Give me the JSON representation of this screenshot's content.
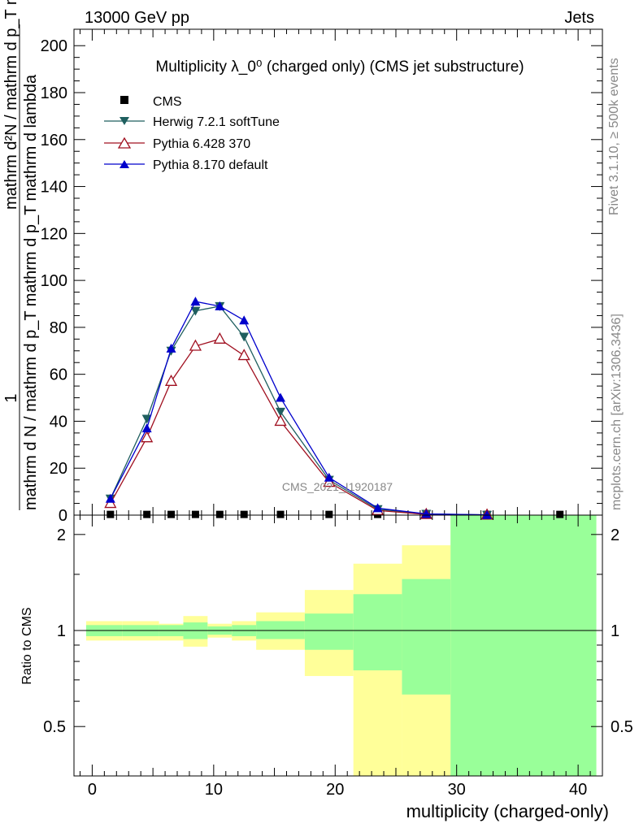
{
  "header": {
    "left": "13000 GeV pp",
    "right": "Jets"
  },
  "side": {
    "rivet": "Rivet 3.1.10, ≥ 500k events",
    "mcplots": "mcplots.cern.ch [arXiv:1306.3436]"
  },
  "watermark": "CMS_2021_I1920187",
  "main_title": "Multiplicity λ_0⁰ (charged only) (CMS jet substructure)",
  "ylabel_top": "1",
  "ylabel_top2": "mathrm d N / mathrm d p_T mathrm d p_T mathrm d lambda",
  "ylabel_main": "mathrm d²N / mathrm d p_T mathrm d lambda",
  "ratio_ylabel": "Ratio to CMS",
  "xlabel": "multiplicity (charged-only)",
  "colors": {
    "cms": "#000000",
    "herwig": "#1f5f5f",
    "pythia6": "#a01020",
    "pythia8": "#0000cc",
    "band_inner": "#99ff99",
    "band_outer": "#ffff99"
  },
  "chart_data": {
    "type": "line",
    "title": "Multiplicity λ_0⁰ (charged only) (CMS jet substructure)",
    "xlabel": "multiplicity (charged-only)",
    "xlim": [
      -1.5,
      42
    ],
    "ylim": [
      0,
      207
    ],
    "ratio_ylim": [
      0.35,
      2.3
    ],
    "x_ticks": [
      "0",
      "10",
      "20",
      "30",
      "40"
    ],
    "y_ticks": [
      "0",
      "20",
      "40",
      "60",
      "80",
      "100",
      "120",
      "140",
      "160",
      "180",
      "200"
    ],
    "ratio_ticks": [
      "0.5",
      "1",
      "2"
    ],
    "legend": [
      "CMS",
      "Herwig 7.2.1 softTune",
      "Pythia 6.428 370",
      "Pythia 8.170 default"
    ],
    "legend_position": "top-left",
    "series": [
      {
        "name": "CMS",
        "marker": "square",
        "x": [
          1.5,
          4.5,
          6.5,
          8.5,
          10.5,
          12.5,
          15.5,
          19.5,
          23.5,
          27.5,
          32.5,
          38.5
        ],
        "y": [
          0.3,
          0.3,
          0.3,
          0.3,
          0.3,
          0.3,
          0.3,
          0.3,
          0.3,
          0.3,
          0.3,
          0.3
        ]
      },
      {
        "name": "Herwig 7.2.1 softTune",
        "marker": "triangle-down",
        "x": [
          1.5,
          4.5,
          6.5,
          8.5,
          10.5,
          12.5,
          15.5,
          19.5,
          23.5,
          27.5,
          32.5
        ],
        "y": [
          7,
          41,
          70,
          87,
          89,
          76,
          44,
          15,
          2.5,
          0.5,
          0.1
        ]
      },
      {
        "name": "Pythia 6.428 370",
        "marker": "triangle-up-open",
        "x": [
          1.5,
          4.5,
          6.5,
          8.5,
          10.5,
          12.5,
          15.5,
          19.5,
          23.5,
          27.5,
          32.5
        ],
        "y": [
          5,
          33,
          57,
          72,
          75,
          68,
          40,
          14,
          2,
          0.3,
          0.05
        ]
      },
      {
        "name": "Pythia 8.170 default",
        "marker": "triangle-up",
        "x": [
          1.5,
          4.5,
          6.5,
          8.5,
          10.5,
          12.5,
          15.5,
          19.5,
          23.5,
          27.5,
          32.5
        ],
        "y": [
          7,
          37,
          71,
          91,
          89,
          83,
          50,
          16,
          3,
          0.5,
          0.1
        ]
      }
    ],
    "ratio_bands": [
      {
        "x0": -0.5,
        "x1": 2.5,
        "inner": [
          0.96,
          1.04
        ],
        "outer": [
          0.93,
          1.07
        ]
      },
      {
        "x0": 2.5,
        "x1": 5.5,
        "inner": [
          0.96,
          1.04
        ],
        "outer": [
          0.93,
          1.07
        ]
      },
      {
        "x0": 5.5,
        "x1": 7.5,
        "inner": [
          0.96,
          1.04
        ],
        "outer": [
          0.93,
          1.05
        ]
      },
      {
        "x0": 7.5,
        "x1": 9.5,
        "inner": [
          0.94,
          1.06
        ],
        "outer": [
          0.89,
          1.11
        ]
      },
      {
        "x0": 9.5,
        "x1": 11.5,
        "inner": [
          0.97,
          1.03
        ],
        "outer": [
          0.95,
          1.05
        ]
      },
      {
        "x0": 11.5,
        "x1": 13.5,
        "inner": [
          0.96,
          1.04
        ],
        "outer": [
          0.93,
          1.07
        ]
      },
      {
        "x0": 13.5,
        "x1": 17.5,
        "inner": [
          0.94,
          1.07
        ],
        "outer": [
          0.87,
          1.14
        ]
      },
      {
        "x0": 17.5,
        "x1": 21.5,
        "inner": [
          0.87,
          1.13
        ],
        "outer": [
          0.72,
          1.34
        ]
      },
      {
        "x0": 21.5,
        "x1": 25.5,
        "inner": [
          0.75,
          1.3
        ],
        "outer": [
          0.35,
          1.62
        ]
      },
      {
        "x0": 25.5,
        "x1": 29.5,
        "inner": [
          0.63,
          1.45
        ],
        "outer": [
          0.35,
          1.85
        ]
      },
      {
        "x0": 29.5,
        "x1": 41.5,
        "inner": [
          0.35,
          2.3
        ],
        "outer": [
          0.35,
          2.3
        ]
      }
    ]
  }
}
